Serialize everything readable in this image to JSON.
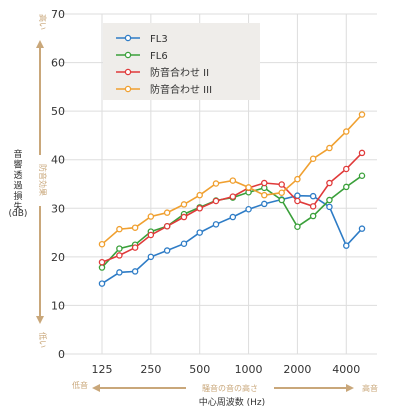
{
  "chart_data": {
    "type": "line",
    "x": [
      125,
      160,
      200,
      250,
      315,
      400,
      500,
      630,
      800,
      1000,
      1250,
      1600,
      2000,
      2500,
      3150,
      4000,
      5000
    ],
    "series": [
      {
        "name": "FL3",
        "color": "#2e7cc6",
        "values": [
          14.5,
          16.8,
          17.0,
          20.0,
          21.3,
          22.7,
          25.0,
          26.7,
          28.2,
          29.8,
          30.9,
          31.8,
          32.6,
          32.5,
          30.3,
          22.3,
          25.8
        ]
      },
      {
        "name": "FL6",
        "color": "#3aa03a",
        "values": [
          17.8,
          21.7,
          22.5,
          25.2,
          26.3,
          28.8,
          30.2,
          31.6,
          32.2,
          33.3,
          34.2,
          31.7,
          26.2,
          28.4,
          31.7,
          34.4,
          36.7
        ]
      },
      {
        "name": "防音合わせ II",
        "color": "#e03a3a",
        "values": [
          18.9,
          20.3,
          21.9,
          24.5,
          26.3,
          28.2,
          30.0,
          31.5,
          32.4,
          34.2,
          35.2,
          34.9,
          31.5,
          30.4,
          35.2,
          38.1,
          41.4
        ]
      },
      {
        "name": "防音合わせ III",
        "color": "#f0a030",
        "values": [
          22.6,
          25.7,
          26.0,
          28.3,
          29.1,
          30.8,
          32.7,
          35.1,
          35.7,
          34.3,
          32.7,
          33.2,
          36.0,
          40.2,
          42.4,
          45.8,
          49.3
        ]
      }
    ],
    "xticks": [
      "125",
      "250",
      "500",
      "1000",
      "2000",
      "4000"
    ],
    "yticks": [
      "0",
      "10",
      "20",
      "30",
      "40",
      "50",
      "60",
      "70"
    ],
    "ylim": [
      0,
      70
    ],
    "xlabel": "中心周波数 (Hz)",
    "ylabel": "音響透過損失",
    "yunit": "(dB)",
    "grid": true,
    "legend_position": "top-left"
  },
  "annotations": {
    "y_high": "高い",
    "y_low": "低い",
    "y_effect": "防音効果",
    "x_low": "低音",
    "x_high": "高音",
    "x_mid": "騒音の音の高さ"
  },
  "colors": {
    "accent": "#c9a77a",
    "grid": "#dddddd",
    "legend_bg": "#efedea"
  }
}
